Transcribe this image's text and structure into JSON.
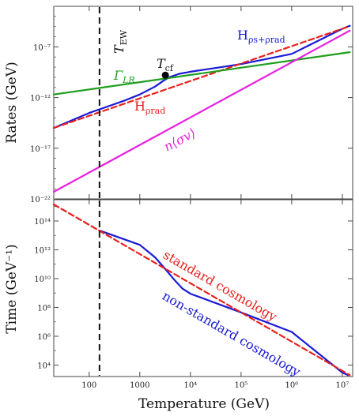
{
  "chart_data": [
    {
      "type": "line",
      "ylabel": "Rates (GeV)",
      "xscale": "log",
      "yscale": "log",
      "xlim": [
        20,
        16000000
      ],
      "ylim": [
        1e-22,
        0.001
      ],
      "yticks": [
        {
          "v": 1e-22,
          "label": "10⁻²²"
        },
        {
          "v": 1e-17,
          "label": "10⁻¹⁷"
        },
        {
          "v": 1e-12,
          "label": "10⁻¹²"
        },
        {
          "v": 1e-07,
          "label": "10⁻⁷"
        }
      ],
      "series": [
        {
          "name": "Hρs+ρrad",
          "color": "#1a1ad6",
          "dash": false,
          "points": [
            [
              20,
              1e-15
            ],
            [
              100,
              3e-14
            ],
            [
              500,
              5e-13
            ],
            [
              1000,
              2e-12
            ],
            [
              2000,
              1.2e-11
            ],
            [
              3000,
              5e-11
            ],
            [
              4000,
              1.1e-10
            ],
            [
              6000,
              2.2e-10
            ],
            [
              10000,
              3.5e-10
            ],
            [
              30000,
              8e-10
            ],
            [
              100000,
              2e-09
            ],
            [
              1000000,
              2e-08
            ],
            [
              10000000,
              6e-06
            ],
            [
              14000000,
              1.2e-05
            ]
          ]
        },
        {
          "name": "Hρrad",
          "color": "#e8211d",
          "dash": true,
          "points": [
            [
              20,
              1e-15
            ],
            [
              14000000,
              1.1e-05
            ]
          ]
        },
        {
          "name": "ΓLR",
          "color": "#1f9e1f",
          "dash": false,
          "points": [
            [
              20,
              2e-12
            ],
            [
              14000000,
              3e-08
            ]
          ]
        },
        {
          "name": "n⟨σv⟩",
          "color": "#e820e0",
          "dash": false,
          "points": [
            [
              20,
              5e-22
            ],
            [
              14000000,
              4e-06
            ]
          ]
        }
      ],
      "annotations": [
        {
          "text": "H",
          "sub": "ρs+ρrad",
          "color": "#1a1ad6"
        },
        {
          "text": "H",
          "sub": "ρrad",
          "color": "#e8211d"
        },
        {
          "text": "Γ",
          "sub": "LR",
          "color": "#1f9e1f"
        },
        {
          "text": "n⟨σv⟩",
          "color": "#e820e0"
        },
        {
          "text": "T",
          "sub": "cf",
          "color": "#111111"
        },
        {
          "text": "T",
          "sub": "EW",
          "color": "#111111"
        }
      ],
      "marker": {
        "x": 3200,
        "y": 1.6e-10
      }
    },
    {
      "type": "line",
      "xlabel": "Temperature (GeV)",
      "ylabel": "Time (GeV⁻¹)",
      "xscale": "log",
      "yscale": "log",
      "xlim": [
        20,
        16000000
      ],
      "ylim": [
        1600,
        3000000000000000.0
      ],
      "yticks": [
        {
          "v": 10000.0,
          "label": "10⁴"
        },
        {
          "v": 1000000.0,
          "label": "10⁶"
        },
        {
          "v": 100000000.0,
          "label": "10⁸"
        },
        {
          "v": 10000000000.0,
          "label": "10¹⁰"
        },
        {
          "v": 1000000000000.0,
          "label": "10¹²"
        },
        {
          "v": 100000000000000.0,
          "label": "10¹⁴"
        }
      ],
      "xticks": [
        {
          "v": 100,
          "label": "100"
        },
        {
          "v": 1000,
          "label": "1000"
        },
        {
          "v": 10000,
          "label": "10⁴"
        },
        {
          "v": 100000,
          "label": "10⁵"
        },
        {
          "v": 1000000,
          "label": "10⁶"
        },
        {
          "v": 10000000,
          "label": "10⁷"
        }
      ],
      "series": [
        {
          "name": "non-standard cosmology",
          "color": "#1a1ad6",
          "dash": false,
          "points": [
            [
              160,
              22000000000000.0
            ],
            [
              1000,
              2200000000000.0
            ],
            [
              2000,
              300000000000.0
            ],
            [
              3000,
              60000000000.0
            ],
            [
              5000,
              7000000000.0
            ],
            [
              7000,
              2000000000.0
            ],
            [
              10000,
              900000000.0
            ],
            [
              100000,
              45000000.0
            ],
            [
              1000000,
              2000000.0
            ],
            [
              10000000,
              3000.0
            ],
            [
              13000000,
              2000.0
            ]
          ]
        },
        {
          "name": "standard cosmology",
          "color": "#e8211d",
          "dash": true,
          "points": [
            [
              20,
              1400000000000000.0
            ],
            [
              14000000,
              2000.0
            ]
          ]
        }
      ],
      "annotations": [
        {
          "text": "standard cosmology",
          "color": "#e8211d"
        },
        {
          "text": "non-standard cosmology",
          "color": "#1a1ad6"
        }
      ]
    }
  ],
  "vline": {
    "x": 160,
    "color": "#111111"
  }
}
